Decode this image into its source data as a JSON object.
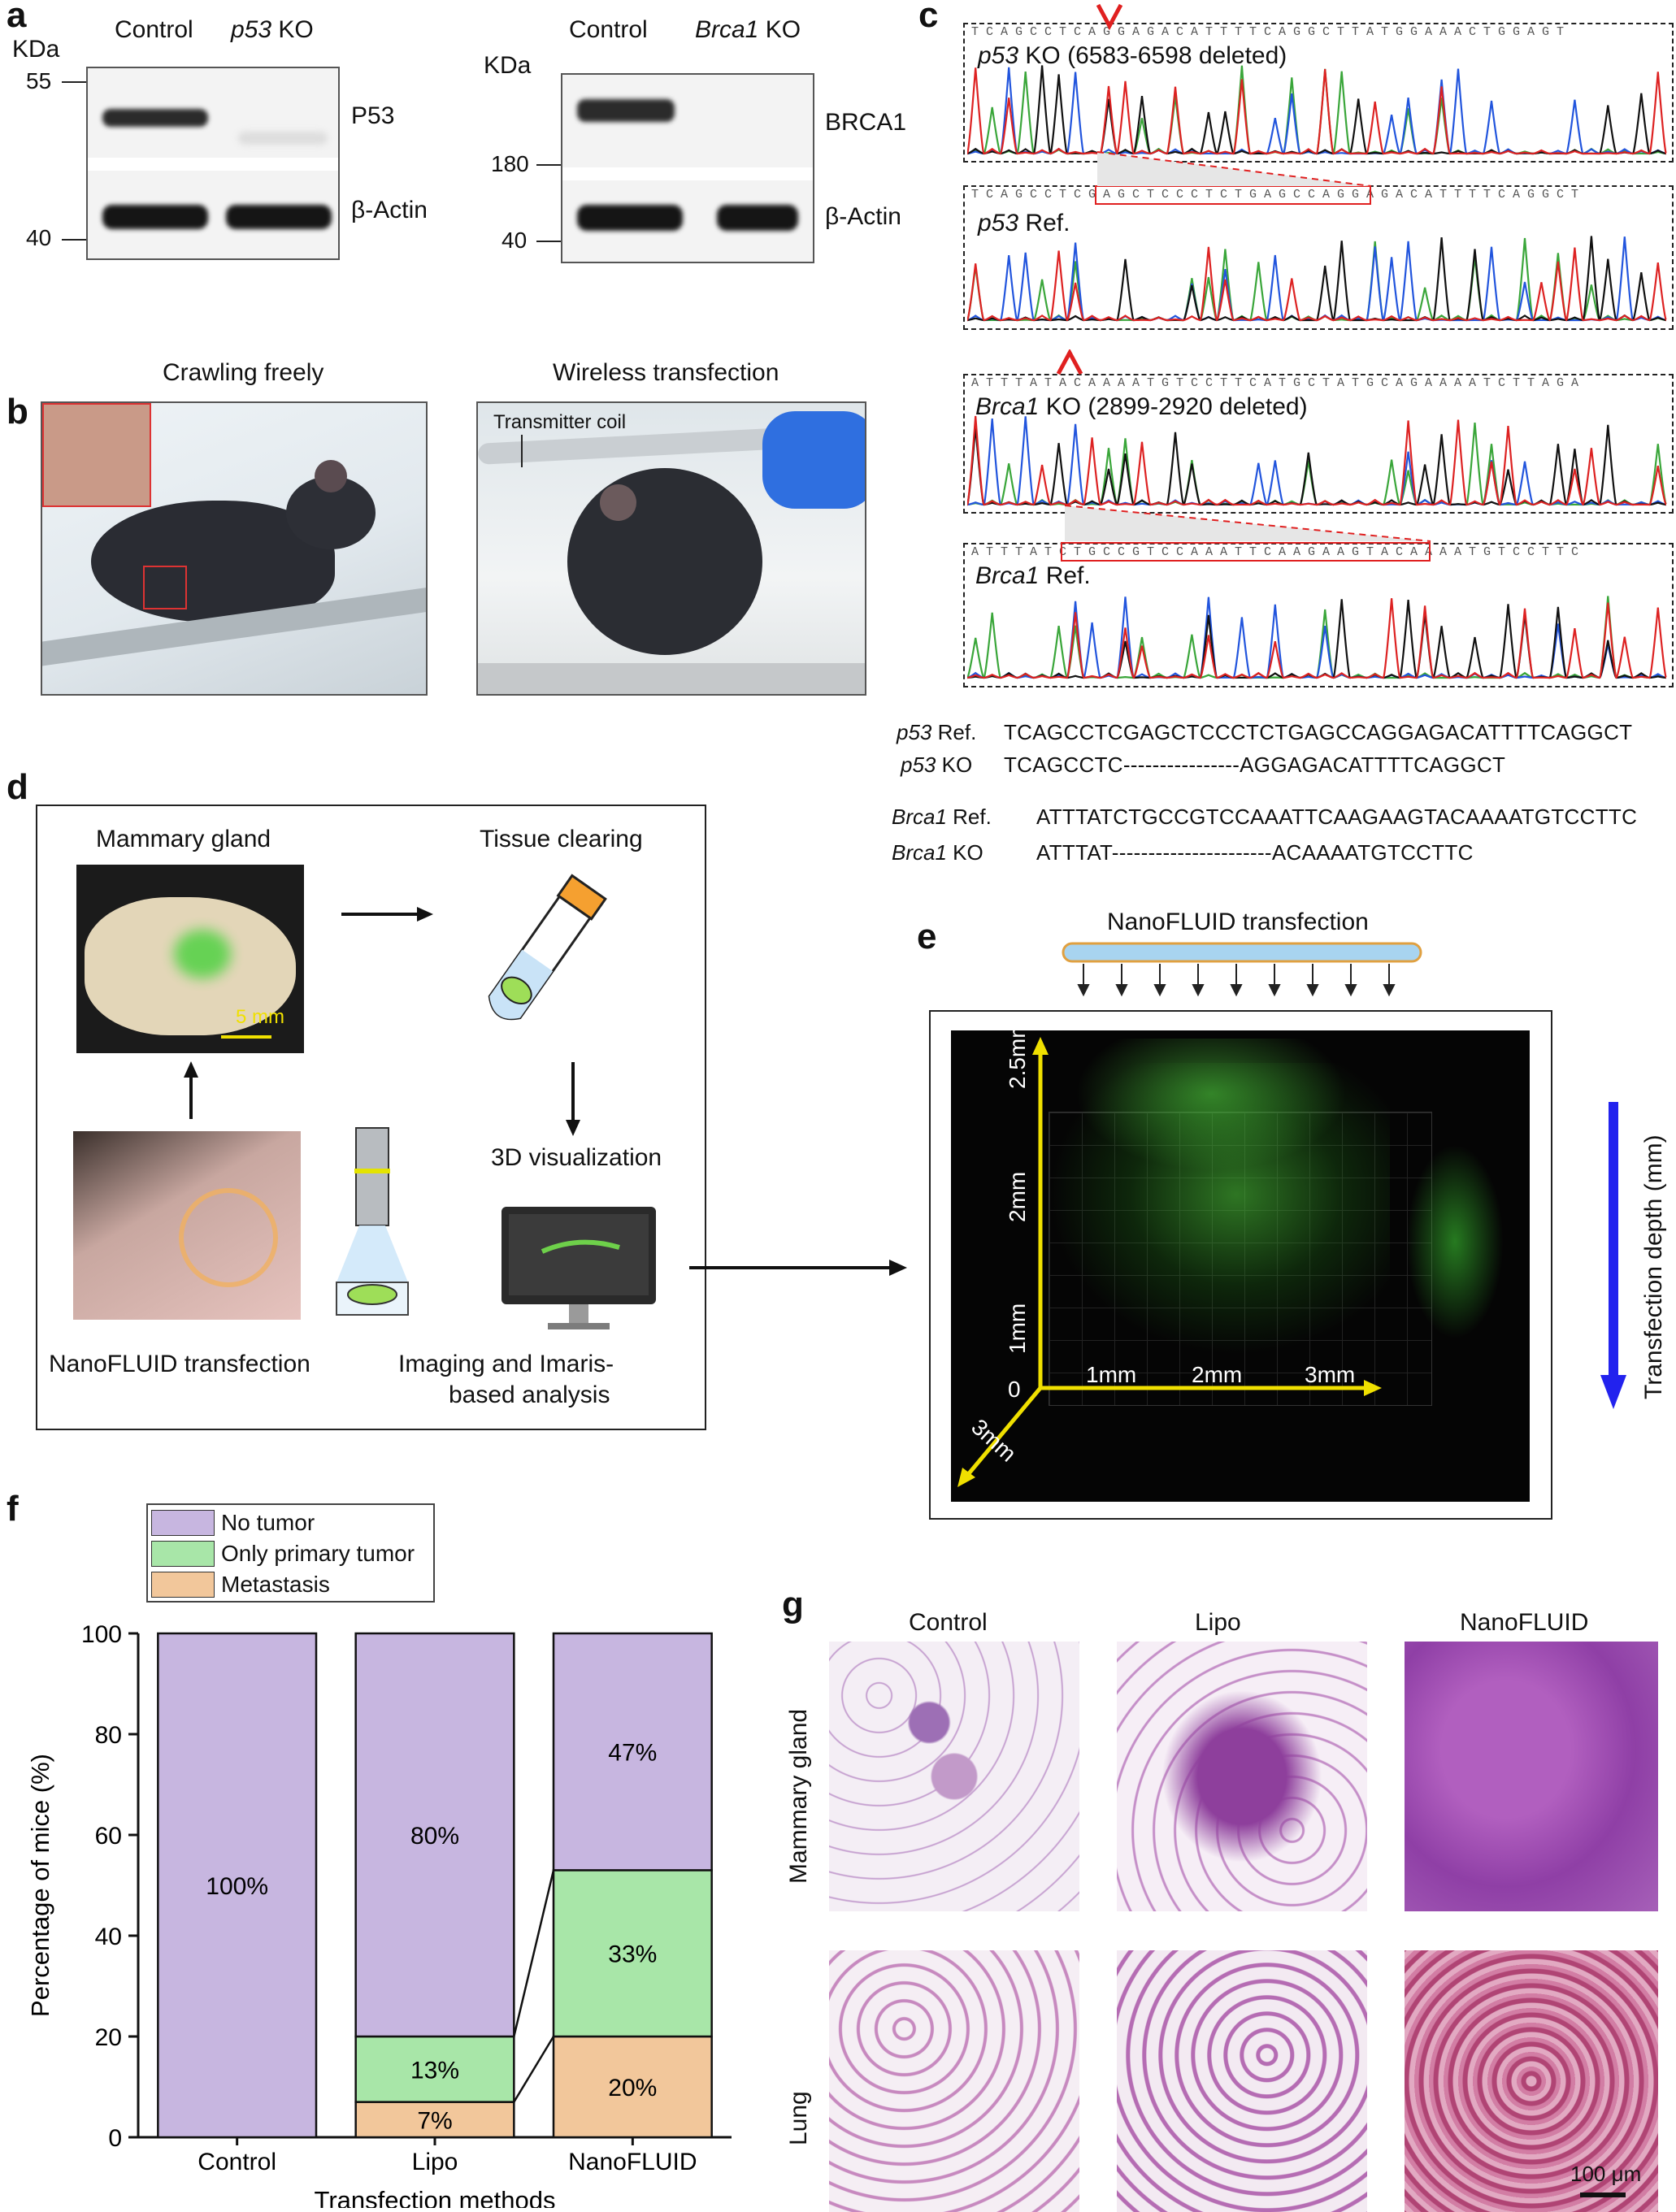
{
  "panels": {
    "a": "a",
    "b": "b",
    "c": "c",
    "d": "d",
    "e": "e",
    "f": "f",
    "g": "g"
  },
  "panel_a": {
    "kda": "KDa",
    "blot1": {
      "col1": "Control",
      "col2_gene": "p53",
      "col2_suffix": " KO",
      "band_top": "P53",
      "band_bottom": "β-Actin",
      "mw_top": "55",
      "mw_bottom": "40"
    },
    "blot2": {
      "col1": "Control",
      "col2_gene": "Brca1",
      "col2_suffix": " KO",
      "band_top": "BRCA1",
      "band_bottom": "β-Actin",
      "mw_top": "180",
      "mw_bottom": "40"
    }
  },
  "panel_b": {
    "left_title": "Crawling freely",
    "right_title": "Wireless  transfection",
    "coil_label": "Transmitter coil"
  },
  "panel_c": {
    "p53ko_seq": "TCAGCCTCAGGAGACATTTTCAGGCTTATGGAAACTGGAGT",
    "p53ko_gene": "p53",
    "p53ko_label": " KO (6583-6598 deleted)",
    "p53ref_seq": "TCAGCCTCGAGCTCCCTCTGAGCCAGGAGACATTTTCAGGCT",
    "p53ref_gene": "p53",
    "p53ref_label": " Ref.",
    "brca1ko_seq": "ATTTATACAAAATGTCCTTCATGCTATGCAGAAAATCTTAGA",
    "brca1ko_gene": "Brca1",
    "brca1ko_label": " KO   (2899-2920 deleted)",
    "brca1ref_seq": "ATTTATCTGCCGTCCAAATTCAAGAAGTACAAAATGTCCTTC",
    "brca1ref_gene": "Brca1",
    "brca1ref_label": " Ref.",
    "alignment": [
      {
        "gene": "p53",
        "suffix": " Ref.",
        "seq": "TCAGCCTCGAGCTCCCTCTGAGCCAGGAGACATTTTCAGGCT"
      },
      {
        "gene": "p53",
        "suffix": " KO",
        "seq": "TCAGCCTC----------------AGGAGACATTTTCAGGCT"
      },
      {
        "gene": "Brca1",
        "suffix": " Ref.",
        "seq": "ATTTATCTGCCGTCCAAATTCAAGAAGTACAAAATGTCCTTC"
      },
      {
        "gene": "Brca1",
        "suffix": " KO",
        "seq": "ATTTAT----------------------ACAAAATGTCCTTC"
      }
    ]
  },
  "panel_d": {
    "mammary": "Mammary gland",
    "scale": "5 mm",
    "clearing": "Tissue clearing",
    "visual": "3D visualization",
    "nanofluid": "NanoFLUID transfection",
    "imaging_line1": "Imaging and Imaris-",
    "imaging_line2": "based analysis"
  },
  "panel_e": {
    "title": "NanoFLUID transfection",
    "depth_label": "Transfection depth (mm)",
    "z_ticks": [
      "2.5mm",
      "2mm",
      "1mm",
      "0"
    ],
    "x_ticks": [
      "1mm",
      "2mm",
      "3mm"
    ],
    "y_tick": "3mm"
  },
  "chart_data": {
    "type": "bar",
    "stacked": true,
    "categories": [
      "Control",
      "Lipo",
      "NanoFLUID"
    ],
    "series": [
      {
        "name": "Metastasis",
        "values": [
          0,
          7,
          20
        ],
        "labels": [
          "",
          "7%",
          "20%"
        ],
        "color": "#f2c79b"
      },
      {
        "name": "Only primary tumor",
        "values": [
          0,
          13,
          33
        ],
        "labels": [
          "",
          "13%",
          "33%"
        ],
        "color": "#a8e6a8"
      },
      {
        "name": "No tumor",
        "values": [
          100,
          80,
          47
        ],
        "labels": [
          "100%",
          "80%",
          "47%"
        ],
        "color": "#c7b6e0"
      }
    ],
    "xlabel": "Transfection methods",
    "ylabel": "Percentage of mice (%)",
    "ylim": [
      0,
      100
    ],
    "yticks": [
      "0",
      "20",
      "40",
      "60",
      "80",
      "100"
    ],
    "legend_position": "top-left"
  },
  "panel_g": {
    "cols": [
      "Control",
      "Lipo",
      "NanoFLUID"
    ],
    "rows": [
      "Mammary gland",
      "Lung"
    ],
    "scale": "100 μm"
  }
}
